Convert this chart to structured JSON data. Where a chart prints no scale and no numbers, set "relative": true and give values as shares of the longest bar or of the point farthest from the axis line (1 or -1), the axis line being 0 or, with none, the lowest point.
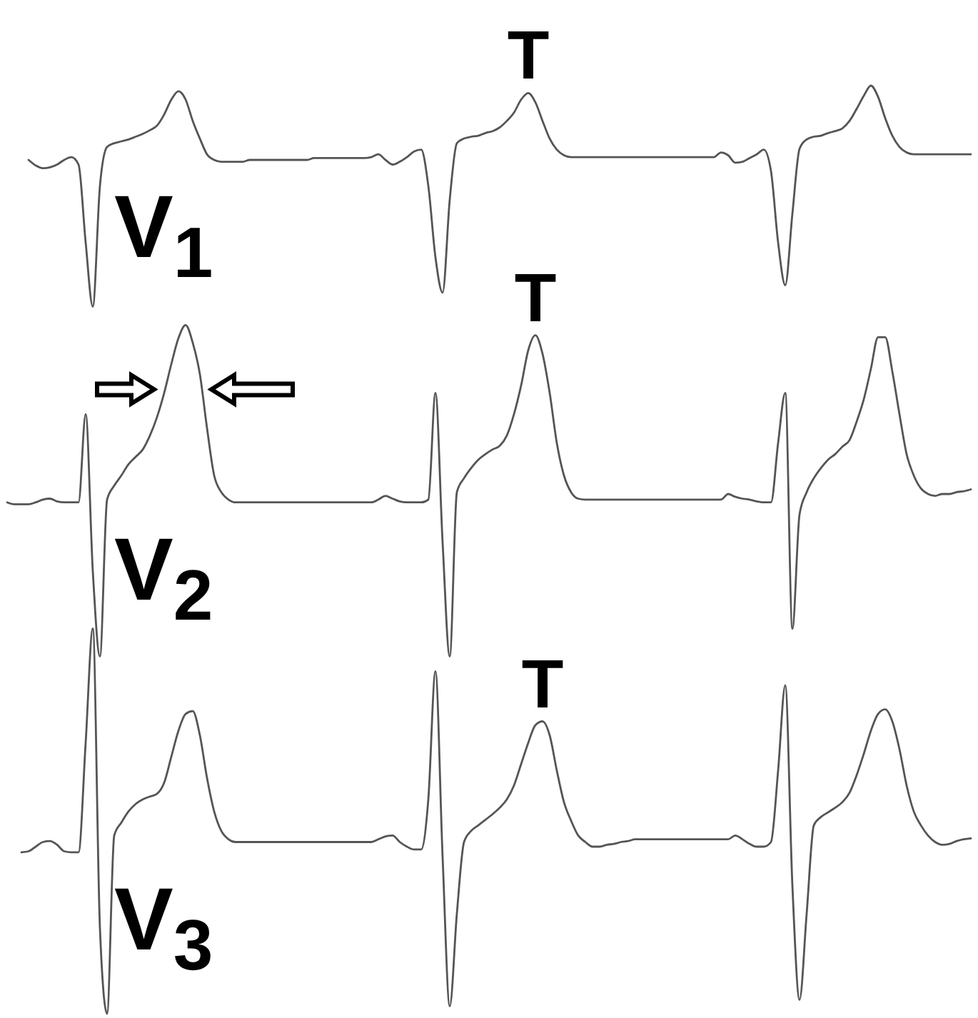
{
  "chart_data": {
    "type": "line",
    "relative": true,
    "categories": [
      null,
      null,
      null,
      null,
      null,
      null,
      null,
      null,
      null,
      null,
      null,
      null,
      null,
      null,
      null,
      null,
      null,
      null,
      null,
      null,
      null,
      null,
      null,
      null,
      null,
      null,
      null,
      null,
      null,
      null,
      null,
      null,
      null,
      null,
      null,
      null,
      null,
      null,
      null,
      null,
      null,
      null,
      null,
      null,
      null,
      null,
      null,
      null,
      null,
      null,
      null,
      null,
      null,
      null,
      null,
      null,
      null,
      null,
      null,
      null,
      null,
      null,
      null,
      null,
      null,
      null,
      null,
      null,
      null,
      null,
      null,
      null,
      null,
      null,
      null,
      null,
      null,
      null,
      null,
      null,
      null,
      null,
      null,
      null,
      null,
      null,
      null,
      null,
      null,
      null,
      null,
      null,
      null,
      null,
      null,
      null,
      null,
      null,
      null,
      null,
      null,
      null,
      null,
      null,
      null,
      null,
      null,
      null,
      null,
      null,
      null,
      null,
      null,
      null,
      null,
      null,
      null,
      null,
      null,
      null,
      null,
      null,
      null,
      null,
      null,
      null,
      null,
      null,
      null,
      null,
      null,
      null,
      null,
      null,
      null,
      null
    ],
    "series": [
      {
        "name": "V$_{1}$",
        "color": "#555555",
        "values": [
          null,
          null,
          null,
          0.92,
          0.914,
          0.911,
          0.912,
          0.915,
          0.92,
          0.923,
          0.915,
          0.831,
          0.762,
          0.892,
          0.934,
          0.938,
          0.94,
          0.942,
          0.945,
          0.948,
          0.952,
          0.957,
          0.969,
          0.985,
          0.994,
          0.985,
          0.962,
          0.943,
          0.926,
          0.92,
          0.918,
          0.918,
          0.918,
          0.918,
          0.92,
          0.92,
          0.92,
          0.92,
          0.92,
          0.92,
          0.92,
          0.92,
          0.92,
          0.922,
          0.922,
          0.922,
          0.922,
          0.922,
          0.922,
          0.922,
          0.922,
          0.923,
          0.926,
          0.92,
          0.915,
          0.918,
          0.923,
          0.929,
          0.931,
          0.892,
          0.815,
          0.777,
          0.877,
          0.938,
          0.943,
          0.945,
          0.946,
          0.949,
          0.951,
          0.955,
          0.962,
          0.971,
          0.985,
          0.992,
          0.982,
          0.962,
          0.943,
          0.931,
          0.925,
          0.923,
          0.923,
          0.923,
          0.923,
          0.923,
          0.923,
          0.923,
          0.923,
          0.923,
          0.923,
          0.923,
          0.923,
          0.923,
          0.923,
          0.923,
          0.923,
          0.923,
          0.923,
          0.923,
          0.923,
          0.923,
          0.928,
          0.925,
          0.917,
          0.918,
          0.922,
          0.926,
          0.931,
          0.908,
          0.831,
          0.785,
          0.862,
          0.932,
          0.942,
          0.945,
          0.946,
          0.949,
          0.951,
          0.954,
          0.962,
          0.975,
          0.989,
          1,
          0.988,
          0.965,
          0.946,
          0.934,
          0.928,
          0.926,
          0.926,
          0.926,
          0.926,
          0.926,
          0.926,
          0.926,
          0.926,
          0.926
        ]
      },
      {
        "name": "V$_{2}$",
        "color": "#555555",
        "values": [
          0.551,
          0.549,
          0.549,
          0.549,
          0.551,
          0.554,
          0.555,
          0.552,
          0.551,
          0.551,
          0.551,
          0.646,
          0.477,
          0.385,
          0.554,
          0.569,
          0.58,
          0.592,
          0.6,
          0.608,
          0.623,
          0.643,
          0.669,
          0.7,
          0.728,
          0.742,
          0.723,
          0.689,
          0.631,
          0.58,
          0.562,
          0.554,
          0.551,
          0.551,
          0.551,
          0.551,
          0.551,
          0.551,
          0.551,
          0.551,
          0.551,
          0.551,
          0.551,
          0.551,
          0.551,
          0.551,
          0.551,
          0.551,
          0.551,
          0.551,
          0.551,
          0.551,
          0.554,
          0.558,
          0.555,
          0.552,
          0.551,
          0.551,
          0.551,
          0.554,
          0.669,
          0.508,
          0.385,
          0.562,
          0.577,
          0.588,
          0.597,
          0.603,
          0.608,
          0.612,
          0.623,
          0.646,
          0.677,
          0.715,
          0.731,
          0.711,
          0.669,
          0.615,
          0.58,
          0.562,
          0.555,
          0.554,
          0.554,
          0.554,
          0.554,
          0.554,
          0.554,
          0.554,
          0.554,
          0.554,
          0.554,
          0.554,
          0.554,
          0.554,
          0.554,
          0.554,
          0.554,
          0.554,
          0.554,
          0.554,
          0.554,
          0.56,
          0.557,
          0.555,
          0.554,
          0.552,
          0.551,
          0.551,
          0.615,
          0.669,
          0.415,
          0.538,
          0.562,
          0.577,
          0.588,
          0.597,
          0.603,
          0.611,
          0.618,
          0.638,
          0.662,
          0.695,
          0.729,
          0.729,
          0.692,
          0.646,
          0.603,
          0.58,
          0.566,
          0.56,
          0.558,
          0.56,
          0.56,
          0.562,
          0.563,
          0.565
        ]
      },
      {
        "name": "V$_{3}$",
        "color": "#555555",
        "values": [
          null,
          null,
          0.174,
          0.175,
          0.18,
          0.185,
          0.186,
          0.182,
          0.175,
          0.174,
          0.174,
          0.292,
          0.415,
          0.092,
          0,
          0.192,
          0.206,
          0.218,
          0.226,
          0.231,
          0.234,
          0.237,
          0.249,
          0.277,
          0.305,
          0.323,
          0.326,
          0.3,
          0.254,
          0.218,
          0.197,
          0.188,
          0.185,
          0.185,
          0.185,
          0.185,
          0.185,
          0.185,
          0.185,
          0.185,
          0.185,
          0.185,
          0.185,
          0.185,
          0.185,
          0.185,
          0.185,
          0.185,
          0.185,
          0.185,
          0.185,
          0.185,
          0.188,
          0.191,
          0.192,
          0.185,
          0.18,
          0.177,
          0.177,
          0.231,
          0.369,
          0.169,
          0.008,
          0.108,
          0.185,
          0.197,
          0.203,
          0.209,
          0.215,
          0.222,
          0.231,
          0.246,
          0.269,
          0.292,
          0.311,
          0.315,
          0.3,
          0.262,
          0.228,
          0.208,
          0.192,
          0.185,
          0.18,
          0.18,
          0.182,
          0.183,
          0.185,
          0.186,
          0.188,
          0.188,
          0.188,
          0.188,
          0.188,
          0.188,
          0.188,
          0.188,
          0.188,
          0.188,
          0.188,
          0.188,
          0.188,
          0.188,
          0.192,
          0.188,
          0.183,
          0.18,
          0.18,
          0.185,
          0.262,
          0.354,
          0.138,
          0.015,
          0.108,
          0.203,
          0.212,
          0.217,
          0.222,
          0.228,
          0.238,
          0.257,
          0.28,
          0.305,
          0.323,
          0.328,
          0.315,
          0.285,
          0.246,
          0.218,
          0.203,
          0.192,
          0.185,
          0.182,
          0.183,
          0.186,
          0.188,
          0.189
        ]
      }
    ],
    "annotations": [
      "T",
      "T",
      "T"
    ]
  }
}
